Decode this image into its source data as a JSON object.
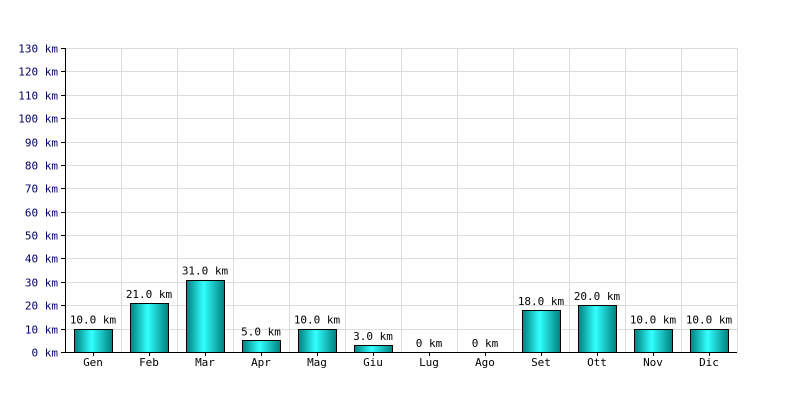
{
  "chart_data": {
    "type": "bar",
    "title": "",
    "xlabel": "",
    "ylabel": "",
    "categories": [
      "Gen",
      "Feb",
      "Mar",
      "Apr",
      "Mag",
      "Giu",
      "Lug",
      "Ago",
      "Set",
      "Ott",
      "Nov",
      "Dic"
    ],
    "values": [
      10.0,
      21.0,
      31.0,
      5.0,
      10.0,
      3.0,
      0,
      0,
      18.0,
      20.0,
      10.0,
      10.0
    ],
    "data_labels": [
      "10.0 km",
      "21.0 km",
      "31.0 km",
      "5.0 km",
      "10.0 km",
      "3.0 km",
      "0 km",
      "0 km",
      "18.0 km",
      "20.0 km",
      "10.0 km",
      "10.0 km"
    ],
    "y_ticks": [
      0,
      10,
      20,
      30,
      40,
      50,
      60,
      70,
      80,
      90,
      100,
      110,
      120,
      130
    ],
    "y_tick_labels": [
      "0 km",
      "10 km",
      "20 km",
      "30 km",
      "40 km",
      "50 km",
      "60 km",
      "70 km",
      "80 km",
      "90 km",
      "100 km",
      "110 km",
      "120 km",
      "130 km"
    ],
    "ylim": [
      0,
      130
    ],
    "grid": true,
    "colors": {
      "bar_light": "#33ffff",
      "bar_dark": "#008080",
      "bar_stroke": "#000000",
      "grid": "#dcdcdc",
      "y_tick_text": "#000066"
    }
  }
}
